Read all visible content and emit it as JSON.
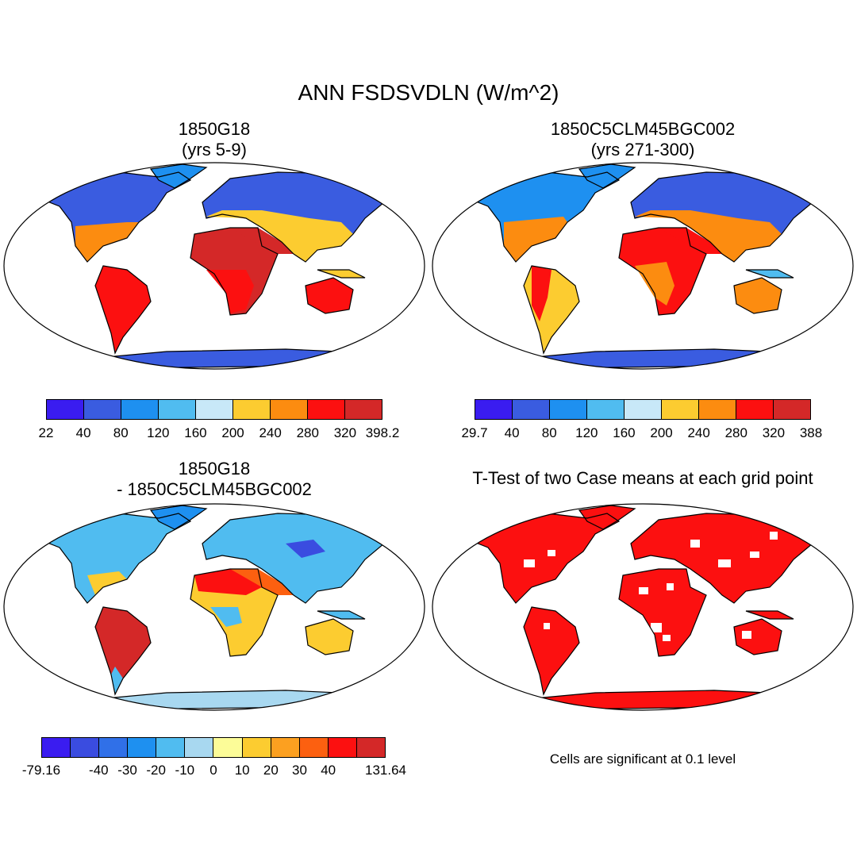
{
  "title": "ANN FSDSVDLN (W/m^2)",
  "panels": [
    {
      "title_line1": "1850G18",
      "title_line2": "(yrs 5-9)"
    },
    {
      "title_line1": "1850C5CLM45BGC002",
      "title_line2": "(yrs 271-300)"
    },
    {
      "title_line1": "1850G18",
      "title_line2": "- 1850C5CLM45BGC002"
    },
    {
      "title_line1": "T-Test of two Case means at each grid point",
      "title_line2": ""
    }
  ],
  "colorbars": [
    {
      "colors": [
        "#3a1cf0",
        "#3a5ce0",
        "#1e90f0",
        "#50bcf0",
        "#c8e8f8",
        "#fccc30",
        "#fc8c10",
        "#fc1010",
        "#d42828"
      ],
      "labels": [
        "22",
        "40",
        "80",
        "120",
        "160",
        "200",
        "240",
        "280",
        "320",
        "398.2"
      ]
    },
    {
      "colors": [
        "#3a1cf0",
        "#3a5ce0",
        "#1e90f0",
        "#50bcf0",
        "#c8e8f8",
        "#fccc30",
        "#fc8c10",
        "#fc1010",
        "#d42828"
      ],
      "labels": [
        "29.7",
        "40",
        "80",
        "120",
        "160",
        "200",
        "240",
        "280",
        "320",
        "388"
      ]
    },
    {
      "colors": [
        "#3a1cf0",
        "#3a4ce0",
        "#3070e8",
        "#1e90f0",
        "#50bcf0",
        "#a8d8f0",
        "#fcfc98",
        "#fccc30",
        "#fca020",
        "#fc6010",
        "#fc1010",
        "#d42828"
      ],
      "labels": [
        "-79.16",
        "",
        "-40",
        "-30",
        "-20",
        "-10",
        "0",
        "10",
        "20",
        "30",
        "40",
        "",
        "131.64"
      ]
    }
  ],
  "ttest_note": "Cells are significant at 0.1 level"
}
